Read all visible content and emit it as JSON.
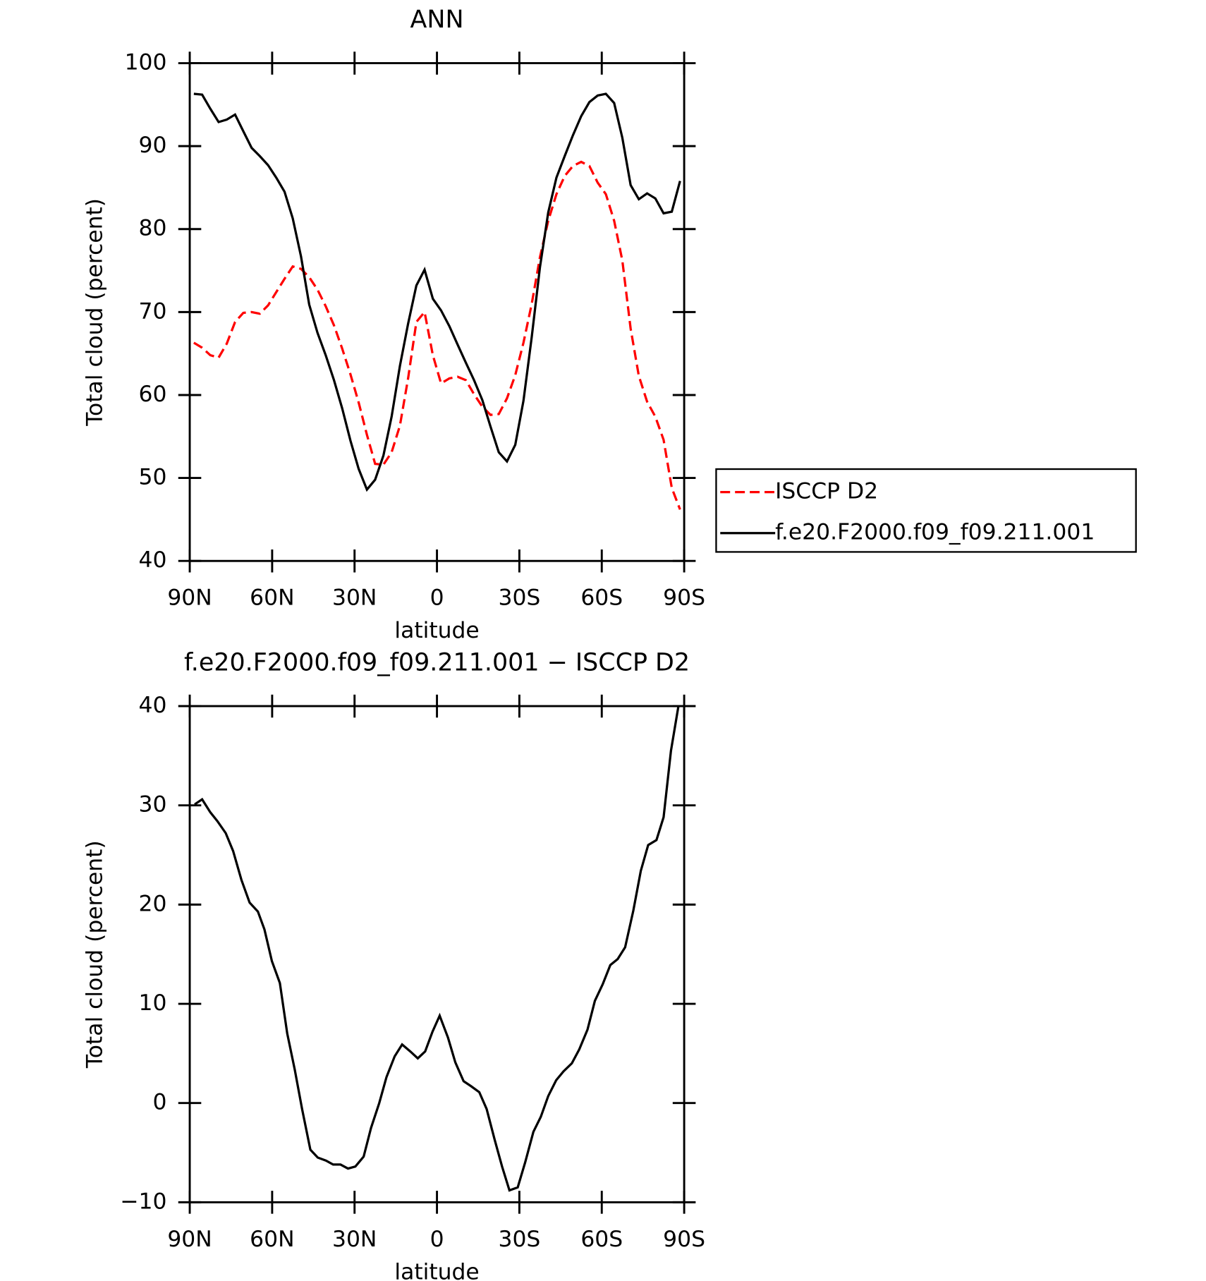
{
  "chart_data": [
    {
      "type": "line",
      "title": "ANN",
      "xlabel": "latitude",
      "ylabel": "Total cloud (percent)",
      "x": [
        88.5,
        85.5,
        82.5,
        79.5,
        76.5,
        73.5,
        70.5,
        67.5,
        64.5,
        61.5,
        58.5,
        55.5,
        52.5,
        49.5,
        46.5,
        43.5,
        40.5,
        37.5,
        34.5,
        31.5,
        28.5,
        25.5,
        22.5,
        19.5,
        16.5,
        13.5,
        10.5,
        7.5,
        4.5,
        1.5,
        -1.5,
        -4.5,
        -7.5,
        -10.5,
        -13.5,
        -16.5,
        -19.5,
        -22.5,
        -25.5,
        -28.5,
        -31.5,
        -34.5,
        -37.5,
        -40.5,
        -43.5,
        -46.5,
        -49.5,
        -52.5,
        -55.5,
        -58.5,
        -61.5,
        -64.5,
        -67.5,
        -70.5,
        -73.5,
        -76.5,
        -79.5,
        -82.5,
        -85.5,
        -88.5
      ],
      "xlim": [
        90,
        -90
      ],
      "xticks": [
        {
          "value": 90,
          "label": "90N"
        },
        {
          "value": 60,
          "label": "60N"
        },
        {
          "value": 30,
          "label": "30N"
        },
        0,
        {
          "value": -30,
          "label": "30S"
        },
        {
          "value": -60,
          "label": "60S"
        },
        {
          "value": -90,
          "label": "90S"
        }
      ],
      "ylim": [
        40,
        100
      ],
      "yticks": [
        40,
        50,
        60,
        70,
        80,
        90,
        100
      ],
      "legend": "right",
      "series": [
        {
          "name": "ISCCP D2",
          "color": "#ff0000",
          "style": "dashed",
          "values": [
            66.3,
            65.7,
            64.8,
            64.5,
            66.2,
            68.8,
            69.9,
            70.0,
            69.8,
            70.8,
            72.4,
            74.0,
            75.5,
            75.2,
            74.2,
            72.7,
            70.7,
            68.4,
            65.6,
            62.5,
            59.1,
            55.2,
            51.7,
            51.6,
            53.1,
            56.3,
            62.0,
            68.8,
            70.0,
            64.8,
            61.4,
            62.0,
            62.2,
            61.8,
            60.1,
            58.6,
            57.6,
            57.7,
            59.6,
            62.4,
            66.3,
            71.0,
            76.6,
            81.0,
            84.2,
            86.4,
            87.6,
            88.1,
            87.6,
            85.6,
            84.2,
            81.0,
            76.2,
            68.0,
            62.3,
            59.2,
            57.4,
            54.6,
            48.8,
            46.2
          ]
        },
        {
          "name": "f.e20.F2000.f09_f09.211.001",
          "color": "#000000",
          "style": "solid",
          "values": [
            96.3,
            96.2,
            94.5,
            92.9,
            93.2,
            93.8,
            91.8,
            89.8,
            88.8,
            87.7,
            86.2,
            84.5,
            81.3,
            76.7,
            70.9,
            67.5,
            64.8,
            61.8,
            58.4,
            54.5,
            51.1,
            48.6,
            49.8,
            52.7,
            57.4,
            63.5,
            68.6,
            73.2,
            75.1,
            71.6,
            70.2,
            68.3,
            66.1,
            63.9,
            61.8,
            59.4,
            56.2,
            53.1,
            52.0,
            54.0,
            59.3,
            67.0,
            75.4,
            82.0,
            86.2,
            88.8,
            91.3,
            93.6,
            95.3,
            96.1,
            96.3,
            95.2,
            91.0,
            85.3,
            83.6,
            84.3,
            83.7,
            81.9,
            82.1,
            85.8
          ]
        }
      ]
    },
    {
      "type": "line",
      "title": "f.e20.F2000.f09_f09.211.001 − ISCCP D2",
      "xlabel": "latitude",
      "ylabel": "Total cloud (percent)",
      "x": [
        88.2,
        85.5,
        82.5,
        79.9,
        76.9,
        74.2,
        71.2,
        68.2,
        65.2,
        62.8,
        60.1,
        57.2,
        54.5,
        51.8,
        49.1,
        46.1,
        43.4,
        40.4,
        37.8,
        35.1,
        32.4,
        29.7,
        26.7,
        24.0,
        21.0,
        18.4,
        15.4,
        12.7,
        9.7,
        7.0,
        4.3,
        1.6,
        -1.0,
        -4.0,
        -6.7,
        -9.7,
        -12.4,
        -15.4,
        -18.1,
        -21.0,
        -23.7,
        -26.4,
        -29.4,
        -32.1,
        -35.1,
        -37.8,
        -40.5,
        -43.4,
        -46.1,
        -49.1,
        -51.8,
        -54.8,
        -57.5,
        -60.4,
        -63.1,
        -65.8,
        -68.5,
        -71.5,
        -74.2,
        -76.9,
        -79.9,
        -82.5,
        -85.2,
        -87.9
      ],
      "xlim": [
        90,
        -90
      ],
      "xticks": [
        {
          "value": 90,
          "label": "90N"
        },
        {
          "value": 60,
          "label": "60N"
        },
        {
          "value": 30,
          "label": "30N"
        },
        0,
        {
          "value": -30,
          "label": "30S"
        },
        {
          "value": -60,
          "label": "60S"
        },
        {
          "value": -90,
          "label": "90S"
        }
      ],
      "ylim": [
        -10,
        40
      ],
      "yticks": [
        {
          "value": -10,
          "label": "−10"
        },
        0,
        10,
        20,
        30,
        40
      ],
      "series": [
        {
          "color": "#000000",
          "style": "solid",
          "values": [
            30.1,
            30.6,
            29.3,
            28.4,
            27.2,
            25.4,
            22.5,
            20.2,
            19.3,
            17.5,
            14.3,
            12.1,
            7.0,
            3.4,
            -0.6,
            -4.7,
            -5.5,
            -5.8,
            -6.2,
            -6.2,
            -6.6,
            -6.4,
            -5.4,
            -2.5,
            0.0,
            2.6,
            4.7,
            5.9,
            5.2,
            4.5,
            5.2,
            7.2,
            8.8,
            6.6,
            4.1,
            2.2,
            1.7,
            1.1,
            -0.6,
            -3.7,
            -6.4,
            -8.8,
            -8.5,
            -6.0,
            -2.9,
            -1.4,
            0.7,
            2.3,
            3.2,
            4.0,
            5.4,
            7.4,
            10.3,
            12.0,
            13.9,
            14.5,
            15.7,
            19.4,
            23.4,
            26.0,
            26.5,
            28.8,
            35.5,
            40.0
          ]
        }
      ]
    }
  ]
}
